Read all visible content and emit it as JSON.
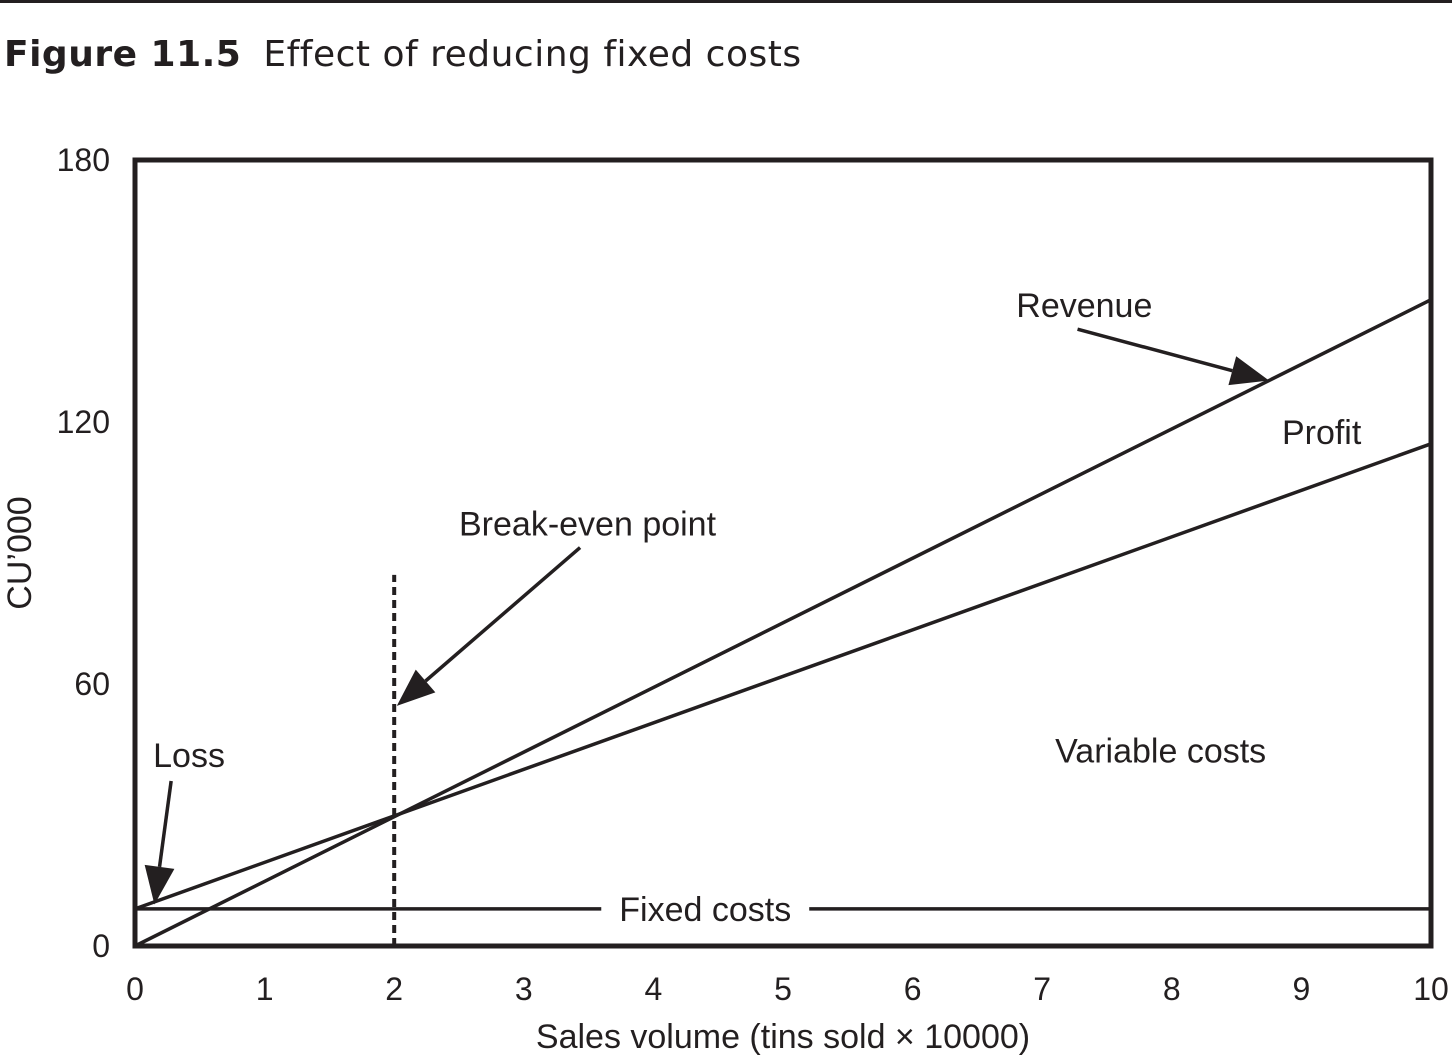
{
  "figure": {
    "number": "Figure 11.5",
    "caption": "Effect of reducing fixed costs"
  },
  "chart_data": {
    "type": "line",
    "title": "Effect of reducing fixed costs",
    "xlabel": "Sales volume (tins sold × 10000)",
    "ylabel": "CU’000",
    "xlim": [
      0,
      10
    ],
    "ylim": [
      0,
      180
    ],
    "x_ticks": [
      "0",
      "1",
      "2",
      "3",
      "4",
      "5",
      "6",
      "7",
      "8",
      "9",
      "10"
    ],
    "y_ticks": [
      "0",
      "60",
      "120",
      "180"
    ],
    "grid": false,
    "series": [
      {
        "name": "Revenue",
        "x": [
          0,
          10
        ],
        "y": [
          0,
          148
        ],
        "style": "solid"
      },
      {
        "name": "",
        "x": [
          0,
          10
        ],
        "y": [
          8.5,
          115
        ],
        "style": "solid"
      },
      {
        "name": "Fixed costs",
        "x": [
          0,
          10
        ],
        "y": [
          8.5,
          8.5
        ],
        "style": "solid"
      },
      {
        "name": "",
        "x": [
          2,
          2
        ],
        "y": [
          0,
          85
        ],
        "style": "dotted"
      }
    ],
    "annotations": [
      {
        "text": "Revenue",
        "x": 6.8,
        "y": 144,
        "arrow_to": [
          8.75,
          129.5
        ]
      },
      {
        "text": "Profit",
        "x": 8.85,
        "y": 115
      },
      {
        "text": "Break-even point",
        "x": 2.5,
        "y": 94,
        "arrow_to": [
          2.02,
          55
        ]
      },
      {
        "text": "Loss",
        "x": 0.14,
        "y": 41,
        "arrow_to": [
          0.15,
          9.5
        ]
      },
      {
        "text": "Variable costs",
        "x": 7.1,
        "y": 42
      },
      {
        "text": "Fixed costs",
        "x": 4.4,
        "y": 8.5
      }
    ]
  }
}
